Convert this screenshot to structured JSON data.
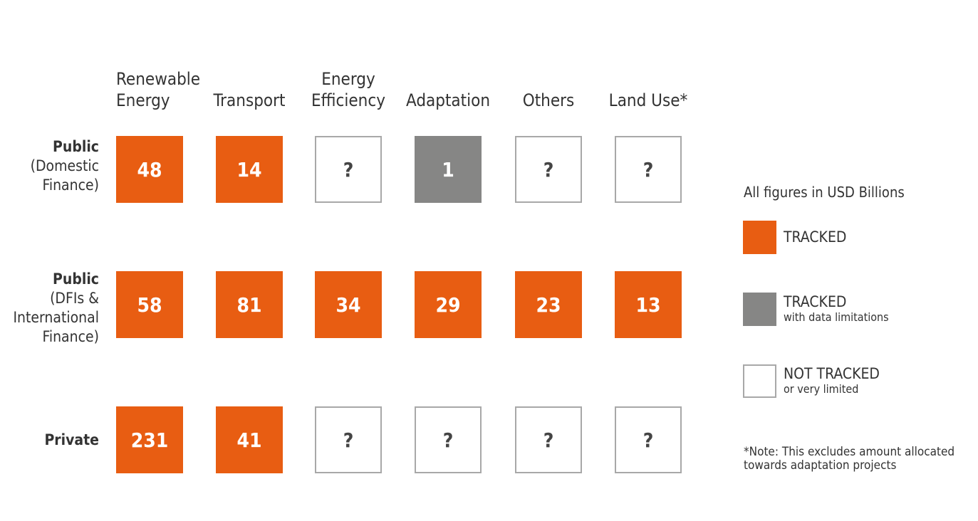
{
  "chart_data": {
    "type": "table",
    "title": "",
    "unit_note": "All figures in USD Billions",
    "columns": [
      {
        "lines": [
          "Renewable",
          "Energy"
        ]
      },
      {
        "lines": [
          "Transport"
        ]
      },
      {
        "lines": [
          "Energy",
          "Efficiency"
        ]
      },
      {
        "lines": [
          "Adaptation"
        ]
      },
      {
        "lines": [
          "Others"
        ]
      },
      {
        "lines": [
          "Land Use*"
        ]
      }
    ],
    "rows": [
      {
        "title": "Public",
        "subtitle": [
          "(Domestic",
          "Finance)"
        ],
        "cells": [
          {
            "label": "48",
            "value": 48,
            "status": "tracked"
          },
          {
            "label": "14",
            "value": 14,
            "status": "tracked"
          },
          {
            "label": "?",
            "value": null,
            "status": "not_tracked"
          },
          {
            "label": "1",
            "value": 1,
            "status": "limited"
          },
          {
            "label": "?",
            "value": null,
            "status": "not_tracked"
          },
          {
            "label": "?",
            "value": null,
            "status": "not_tracked"
          }
        ]
      },
      {
        "title": "Public",
        "subtitle": [
          "(DFIs &",
          "International",
          "Finance)"
        ],
        "cells": [
          {
            "label": "58",
            "value": 58,
            "status": "tracked"
          },
          {
            "label": "81",
            "value": 81,
            "status": "tracked"
          },
          {
            "label": "34",
            "value": 34,
            "status": "tracked"
          },
          {
            "label": "29",
            "value": 29,
            "status": "tracked"
          },
          {
            "label": "23",
            "value": 23,
            "status": "tracked"
          },
          {
            "label": "13",
            "value": 13,
            "status": "tracked"
          }
        ]
      },
      {
        "title": "Private",
        "subtitle": [],
        "cells": [
          {
            "label": "231",
            "value": 231,
            "status": "tracked"
          },
          {
            "label": "41",
            "value": 41,
            "status": "tracked"
          },
          {
            "label": "?",
            "value": null,
            "status": "not_tracked"
          },
          {
            "label": "?",
            "value": null,
            "status": "not_tracked"
          },
          {
            "label": "?",
            "value": null,
            "status": "not_tracked"
          },
          {
            "label": "?",
            "value": null,
            "status": "not_tracked"
          }
        ]
      }
    ],
    "legend": [
      {
        "status": "tracked",
        "label": "TRACKED",
        "sublabel": "",
        "color": "#e85d12"
      },
      {
        "status": "limited",
        "label": "TRACKED",
        "sublabel": "with data limitations",
        "color": "#868685"
      },
      {
        "status": "not_tracked",
        "label": "NOT TRACKED",
        "sublabel": "or very limited",
        "color": "#ffffff"
      }
    ],
    "note": "*Note: This excludes amount allocated towards adaptation projects"
  }
}
